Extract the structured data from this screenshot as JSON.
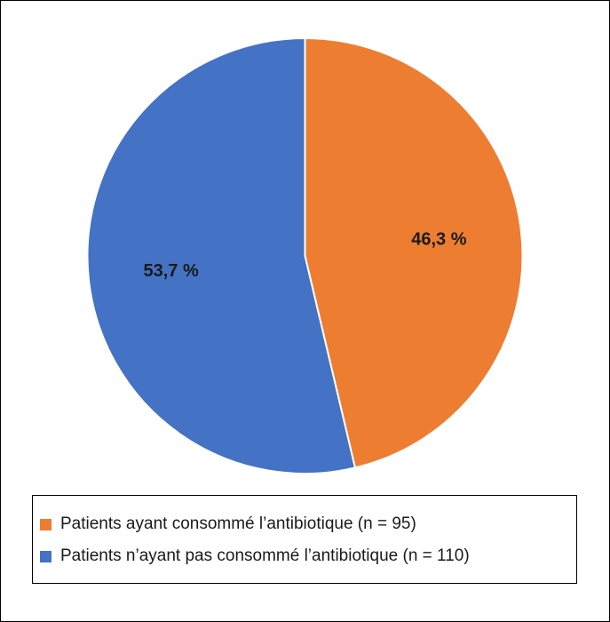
{
  "chart_data": {
    "type": "pie",
    "title": "",
    "slices": [
      {
        "label": "Patients ayant consommé l’antibiotique (n = 95)",
        "value": 46.3,
        "display": "46,3 %",
        "color": "#ED7D31"
      },
      {
        "label": "Patients n’ayant pas consommé l’antibiotique (n = 110)",
        "value": 53.7,
        "display": "53,7 %",
        "color": "#4472C4"
      }
    ],
    "start_angle_deg": 0,
    "direction": "clockwise",
    "legend_position": "bottom"
  }
}
